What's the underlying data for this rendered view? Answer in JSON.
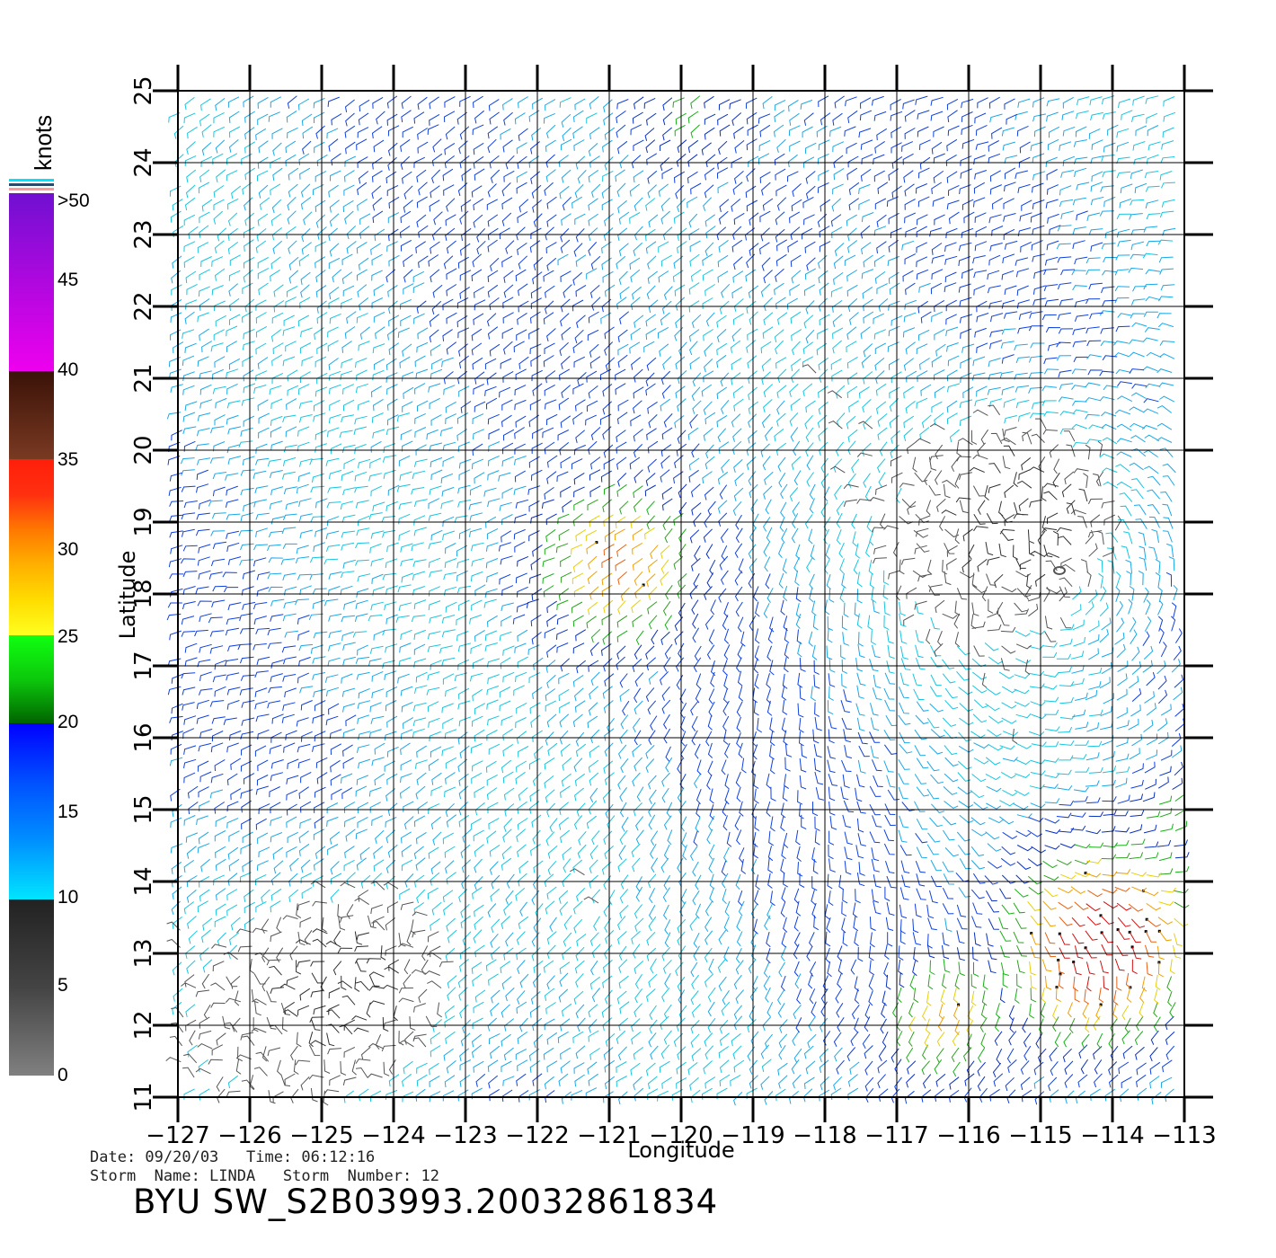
{
  "map": {
    "x_label": "Longitude",
    "y_label": "Latitude",
    "lon_ticks": [
      "-127",
      "-126",
      "-125",
      "-124",
      "-123",
      "-122",
      "-121",
      "-120",
      "-119",
      "-118",
      "-117",
      "-116",
      "-115",
      "-114",
      "-113"
    ],
    "lat_ticks": [
      "11",
      "12",
      "13",
      "14",
      "15",
      "16",
      "17",
      "18",
      "19",
      "20",
      "21",
      "22",
      "23",
      "24",
      "25"
    ],
    "lon_range": [
      -127,
      -113
    ],
    "lat_range": [
      11,
      25
    ],
    "grid": true,
    "storm_center": {
      "lon": -114.8,
      "lat": 18.3
    }
  },
  "legend": {
    "unit": "knots",
    "ticks": [
      ">50",
      "45",
      "40",
      "35",
      "30",
      "25",
      "20",
      "15",
      "10",
      "5",
      "0"
    ],
    "scale_colors": {
      "gray": "#808080",
      "cyan": "#00e5ff",
      "blue": "#0a3cf0",
      "green": "#0cc80c",
      "yellow": "#ffdc00",
      "orange": "#ff7800",
      "red": "#ff1e0a",
      "brown": "#7a3a22",
      "magenta": "#ee00ee",
      "purple": "#7010d0"
    }
  },
  "footer": {
    "date_line": "Date: 09/20/03   Time: 06:12:16",
    "storm_line": "Storm  Name: LINDA   Storm  Number: 12",
    "file_title": "BYU  SW_S2B03993.20032861834"
  }
}
